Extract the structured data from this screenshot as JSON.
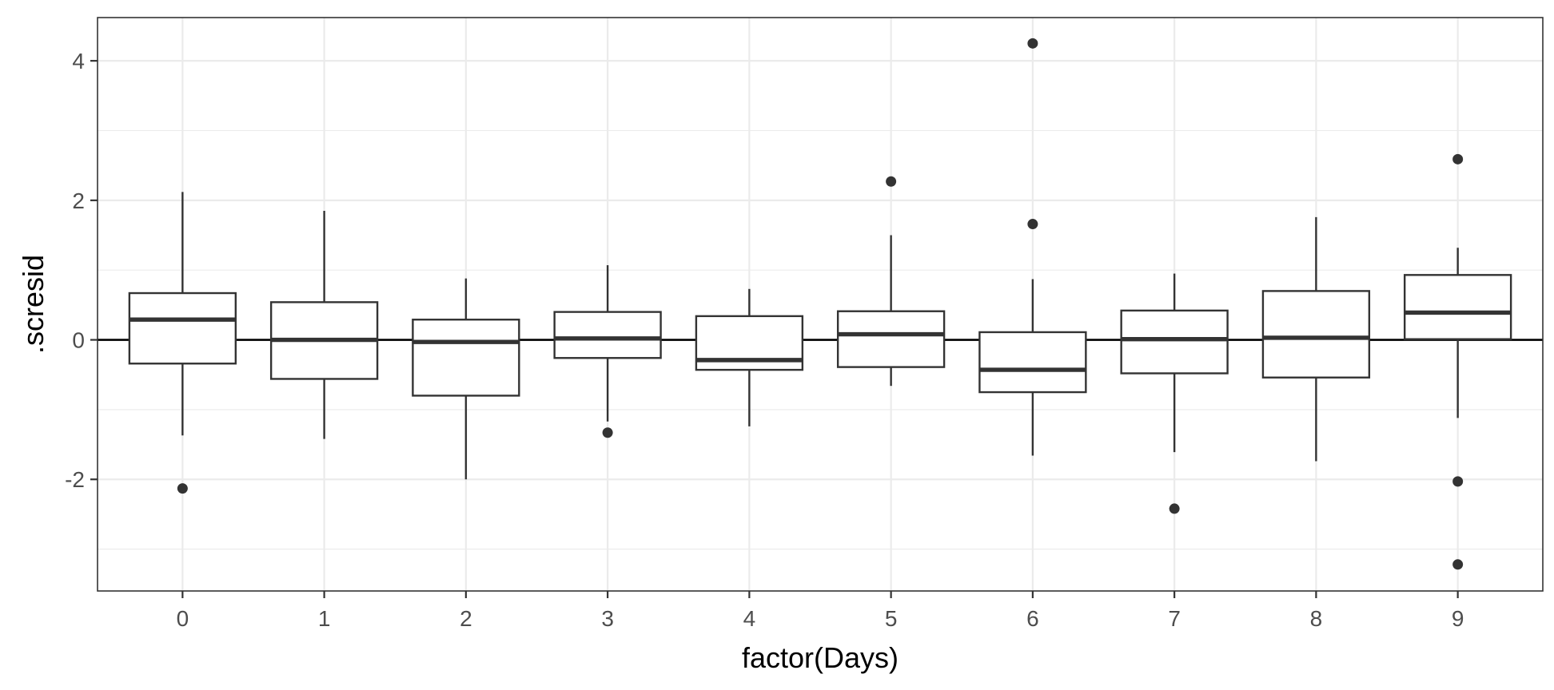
{
  "chart_data": {
    "type": "boxplot",
    "xlabel": "factor(Days)",
    "ylabel": ".scresid",
    "ylim": [
      -3.6,
      4.62
    ],
    "y_ticks": [
      -2,
      0,
      2,
      4
    ],
    "y_tick_labels": [
      "-2",
      "0",
      "2",
      "4"
    ],
    "y_minor_ticks": [
      -3,
      -1,
      1,
      3
    ],
    "grid": true,
    "reference_line_y": 0,
    "categories": [
      "0",
      "1",
      "2",
      "3",
      "4",
      "5",
      "6",
      "7",
      "8",
      "9"
    ],
    "boxes": [
      {
        "category": "0",
        "lower_whisker": -1.37,
        "q1": -0.34,
        "median": 0.29,
        "q3": 0.67,
        "upper_whisker": 2.12,
        "outliers": [
          -2.13
        ]
      },
      {
        "category": "1",
        "lower_whisker": -1.42,
        "q1": -0.56,
        "median": 0.0,
        "q3": 0.54,
        "upper_whisker": 1.85,
        "outliers": []
      },
      {
        "category": "2",
        "lower_whisker": -2.0,
        "q1": -0.8,
        "median": -0.03,
        "q3": 0.29,
        "upper_whisker": 0.88,
        "outliers": []
      },
      {
        "category": "3",
        "lower_whisker": -1.17,
        "q1": -0.26,
        "median": 0.02,
        "q3": 0.4,
        "upper_whisker": 1.07,
        "outliers": [
          -1.33
        ]
      },
      {
        "category": "4",
        "lower_whisker": -1.24,
        "q1": -0.43,
        "median": -0.29,
        "q3": 0.34,
        "upper_whisker": 0.73,
        "outliers": []
      },
      {
        "category": "5",
        "lower_whisker": -0.66,
        "q1": -0.39,
        "median": 0.08,
        "q3": 0.41,
        "upper_whisker": 1.5,
        "outliers": [
          2.27
        ]
      },
      {
        "category": "6",
        "lower_whisker": -1.66,
        "q1": -0.75,
        "median": -0.43,
        "q3": 0.11,
        "upper_whisker": 0.87,
        "outliers": [
          4.25,
          1.66
        ]
      },
      {
        "category": "7",
        "lower_whisker": -1.61,
        "q1": -0.48,
        "median": 0.01,
        "q3": 0.42,
        "upper_whisker": 0.95,
        "outliers": [
          -2.42
        ]
      },
      {
        "category": "8",
        "lower_whisker": -1.74,
        "q1": -0.54,
        "median": 0.03,
        "q3": 0.7,
        "upper_whisker": 1.76,
        "outliers": []
      },
      {
        "category": "9",
        "lower_whisker": -1.12,
        "q1": 0.01,
        "median": 0.39,
        "q3": 0.93,
        "upper_whisker": 1.32,
        "outliers": [
          2.59,
          -2.03,
          -3.22
        ]
      }
    ]
  }
}
